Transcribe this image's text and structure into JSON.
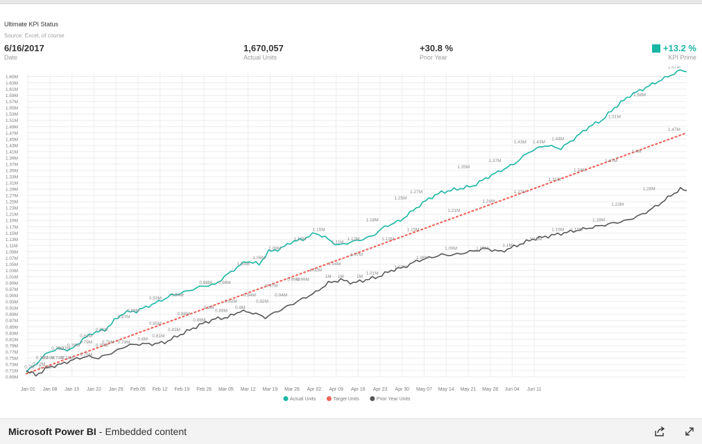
{
  "report": {
    "title": "Ultimate KPI Status",
    "source": "Source: Excel, of course"
  },
  "kpis": {
    "date": {
      "value": "6/16/2017",
      "label": "Date"
    },
    "actual_units": {
      "value": "1,670,057",
      "label": "Actual Units"
    },
    "prior_year": {
      "value": "+30.8 %",
      "label": "Prior Year"
    },
    "kpi_prime": {
      "value": "+13.2 %",
      "label": "KPI Prime",
      "status_color": "#1ab5a5"
    }
  },
  "footer": {
    "brand": "Microsoft Power BI",
    "separator": "-",
    "subtitle": "Embedded content",
    "share_icon": "share-icon",
    "expand_icon": "expand-icon"
  },
  "chart_data": {
    "type": "line",
    "title": "",
    "xlabel": "",
    "ylabel": "",
    "grid": true,
    "legend_position": "bottom",
    "x_ticks": [
      "Jan 01",
      "Jan 08",
      "Jan 15",
      "Jan 22",
      "Jan 29",
      "Feb 05",
      "Feb 12",
      "Feb 19",
      "Feb 26",
      "Mar 05",
      "Mar 12",
      "Mar 19",
      "Mar 26",
      "Apr 02",
      "Apr 09",
      "Apr 16",
      "Apr 23",
      "Apr 30",
      "May 07",
      "May 14",
      "May 21",
      "May 28",
      "Jun 04",
      "Jun 11"
    ],
    "y_ticks": [
      "0.69M",
      "0.71M",
      "0.73M",
      "0.75M",
      "0.77M",
      "0.79M",
      "0.81M",
      "0.83M",
      "0.85M",
      "0.87M",
      "0.89M",
      "0.91M",
      "0.93M",
      "0.95M",
      "0.97M",
      "0.99M",
      "1.01M",
      "1.03M",
      "1.05M",
      "1.07M",
      "1.09M",
      "1.11M",
      "1.13M",
      "1.15M",
      "1.17M",
      "1.19M",
      "1.21M",
      "1.23M",
      "1.25M",
      "1.27M",
      "1.29M",
      "1.31M",
      "1.33M",
      "1.35M",
      "1.37M",
      "1.39M",
      "1.41M",
      "1.43M",
      "1.45M",
      "1.47M",
      "1.49M",
      "1.51M",
      "1.53M",
      "1.55M",
      "1.57M",
      "1.59M",
      "1.61M",
      "1.63M",
      "1.65M"
    ],
    "ylim": [
      0.69,
      1.66
    ],
    "series": [
      {
        "name": "Actual Units",
        "color": "#1ab5a5",
        "style": "solid",
        "points": [
          [
            0,
            0.705
          ],
          [
            4,
            0.74
          ],
          [
            7,
            0.77
          ],
          [
            11,
            0.78
          ],
          [
            14,
            0.775
          ],
          [
            18,
            0.81
          ],
          [
            21,
            0.83
          ],
          [
            25,
            0.84
          ],
          [
            28,
            0.87
          ],
          [
            31,
            0.895
          ],
          [
            35,
            0.9
          ],
          [
            42,
            0.93
          ],
          [
            46,
            0.95
          ],
          [
            50,
            0.96
          ],
          [
            56,
            0.98
          ],
          [
            60,
            0.985
          ],
          [
            63,
            1.01
          ],
          [
            67,
            1.04
          ],
          [
            70,
            1.06
          ],
          [
            74,
            1.05
          ],
          [
            77,
            1.09
          ],
          [
            81,
            1.1
          ],
          [
            84,
            1.12
          ],
          [
            88,
            1.13
          ],
          [
            92,
            1.15
          ],
          [
            96,
            1.13
          ],
          [
            99,
            1.11
          ],
          [
            103,
            1.12
          ],
          [
            107,
            1.13
          ],
          [
            110,
            1.14
          ],
          [
            114,
            1.17
          ],
          [
            119,
            1.19
          ],
          [
            124,
            1.23
          ],
          [
            128,
            1.26
          ],
          [
            132,
            1.28
          ],
          [
            137,
            1.29
          ],
          [
            142,
            1.3
          ],
          [
            147,
            1.33
          ],
          [
            151,
            1.35
          ],
          [
            155,
            1.37
          ],
          [
            160,
            1.41
          ],
          [
            165,
            1.43
          ],
          [
            170,
            1.42
          ],
          [
            174,
            1.45
          ],
          [
            179,
            1.49
          ],
          [
            183,
            1.51
          ],
          [
            187,
            1.55
          ],
          [
            192,
            1.59
          ],
          [
            196,
            1.61
          ],
          [
            200,
            1.63
          ],
          [
            204,
            1.65
          ],
          [
            208,
            1.67
          ],
          [
            210,
            1.665
          ]
        ],
        "labels": [
          [
            1,
            0.71,
            "0.7M"
          ],
          [
            5,
            0.74,
            "0.74M"
          ],
          [
            10,
            0.77,
            "0.77M"
          ],
          [
            15,
            0.78,
            "0.78M"
          ],
          [
            19,
            0.81,
            "0.81M"
          ],
          [
            24,
            0.83,
            "0.83M"
          ],
          [
            31,
            0.87,
            "0.87M"
          ],
          [
            34,
            0.89,
            "0.89M"
          ],
          [
            41,
            0.93,
            "0.93M"
          ],
          [
            48,
            0.94,
            "0.94M"
          ],
          [
            57,
            0.98,
            "0.98M"
          ],
          [
            63,
            0.98,
            "0.98M"
          ],
          [
            69,
            1.04,
            "1.04M"
          ],
          [
            74,
            1.06,
            "1.06M"
          ],
          [
            79,
            1.09,
            "1.09M"
          ],
          [
            87,
            1.12,
            "1.12M"
          ],
          [
            93,
            1.15,
            "1.15M"
          ],
          [
            99,
            1.11,
            "1.11M"
          ],
          [
            104,
            1.12,
            "1.12M"
          ],
          [
            110,
            1.18,
            "1.18M"
          ],
          [
            119,
            1.25,
            "1.25M"
          ],
          [
            124,
            1.27,
            "1.27M"
          ],
          [
            139,
            1.35,
            "1.35M"
          ],
          [
            149,
            1.37,
            "1.37M"
          ],
          [
            157,
            1.43,
            "1.43M"
          ],
          [
            163,
            1.43,
            "1.43M"
          ],
          [
            169,
            1.44,
            "1.44M"
          ],
          [
            187,
            1.51,
            "1.51M"
          ],
          [
            195,
            1.58,
            "1.58M"
          ],
          [
            206,
            1.67,
            "1.67M"
          ]
        ]
      },
      {
        "name": "Target Units",
        "color": "#f0645a",
        "style": "dotted",
        "points": [
          [
            0,
            0.7
          ],
          [
            210,
            1.47
          ]
        ],
        "labels": [
          [
            4,
            0.72,
            "0.72M"
          ],
          [
            7,
            0.74,
            "0.74M"
          ],
          [
            12,
            0.77,
            "0.77M"
          ],
          [
            19,
            0.79,
            "0.79M"
          ],
          [
            26,
            0.79,
            "0.79M"
          ],
          [
            41,
            0.85,
            "0.85M"
          ],
          [
            50,
            0.88,
            "0.88M"
          ],
          [
            58,
            0.9,
            "0.9M"
          ],
          [
            65,
            0.92,
            "0.92M"
          ],
          [
            71,
            0.94,
            "0.94M"
          ],
          [
            78,
            0.97,
            "0.97M"
          ],
          [
            85,
            0.99,
            "0.99M"
          ],
          [
            92,
            1.02,
            "1.02M"
          ],
          [
            98,
            1.04,
            "1.04M"
          ],
          [
            105,
            1.07,
            "1.07M"
          ],
          [
            115,
            1.12,
            "1.12M"
          ],
          [
            123,
            1.15,
            "1.15M"
          ],
          [
            136,
            1.21,
            "1.21M"
          ],
          [
            147,
            1.24,
            "1.24M"
          ],
          [
            157,
            1.27,
            "1.27M"
          ],
          [
            168,
            1.31,
            "1.31M"
          ],
          [
            176,
            1.34,
            "1.34M"
          ],
          [
            186,
            1.37,
            "1.37M"
          ],
          [
            194,
            1.4,
            "1.4M"
          ],
          [
            206,
            1.47,
            "1.47M"
          ]
        ]
      },
      {
        "name": "Prior Year Units",
        "color": "#555555",
        "style": "solid",
        "points": [
          [
            0,
            0.71
          ],
          [
            3,
            0.695
          ],
          [
            7,
            0.72
          ],
          [
            11,
            0.73
          ],
          [
            15,
            0.745
          ],
          [
            19,
            0.755
          ],
          [
            23,
            0.75
          ],
          [
            28,
            0.77
          ],
          [
            32,
            0.79
          ],
          [
            36,
            0.795
          ],
          [
            40,
            0.795
          ],
          [
            44,
            0.8
          ],
          [
            48,
            0.82
          ],
          [
            52,
            0.84
          ],
          [
            56,
            0.86
          ],
          [
            60,
            0.875
          ],
          [
            64,
            0.88
          ],
          [
            68,
            0.9
          ],
          [
            72,
            0.895
          ],
          [
            76,
            0.88
          ],
          [
            80,
            0.9
          ],
          [
            84,
            0.92
          ],
          [
            88,
            0.94
          ],
          [
            92,
            0.96
          ],
          [
            96,
            0.99
          ],
          [
            100,
            1.0
          ],
          [
            104,
            0.99
          ],
          [
            108,
            1.0
          ],
          [
            112,
            1.01
          ],
          [
            116,
            1.03
          ],
          [
            120,
            1.04
          ],
          [
            124,
            1.06
          ],
          [
            128,
            1.07
          ],
          [
            132,
            1.08
          ],
          [
            136,
            1.08
          ],
          [
            141,
            1.09
          ],
          [
            146,
            1.1
          ],
          [
            151,
            1.09
          ],
          [
            156,
            1.11
          ],
          [
            161,
            1.13
          ],
          [
            166,
            1.14
          ],
          [
            171,
            1.15
          ],
          [
            176,
            1.16
          ],
          [
            181,
            1.17
          ],
          [
            186,
            1.18
          ],
          [
            191,
            1.19
          ],
          [
            196,
            1.21
          ],
          [
            201,
            1.24
          ],
          [
            205,
            1.27
          ],
          [
            208,
            1.29
          ],
          [
            210,
            1.285
          ]
        ],
        "labels": [
          [
            6,
            0.71,
            "0.71M"
          ],
          [
            10,
            0.74,
            "0.74M"
          ],
          [
            13,
            0.74,
            "0.74M"
          ],
          [
            19,
            0.75,
            "0.75M"
          ],
          [
            24,
            0.78,
            "0.78M"
          ],
          [
            31,
            0.79,
            "0.79M"
          ],
          [
            37,
            0.8,
            "0.8M"
          ],
          [
            42,
            0.81,
            "0.81M"
          ],
          [
            47,
            0.83,
            "0.83M"
          ],
          [
            55,
            0.86,
            "0.86M"
          ],
          [
            62,
            0.89,
            "0.89M"
          ],
          [
            68,
            0.9,
            "0.9M"
          ],
          [
            75,
            0.92,
            "0.92M"
          ],
          [
            81,
            0.94,
            "0.94M"
          ],
          [
            88,
            0.99,
            "0.99M"
          ],
          [
            96,
            1.0,
            "1M"
          ],
          [
            100,
            1.0,
            "1M"
          ],
          [
            106,
            1.0,
            "1M"
          ],
          [
            110,
            1.01,
            "1.01M"
          ],
          [
            119,
            1.03,
            "1.03M"
          ],
          [
            126,
            1.06,
            "1.06M"
          ],
          [
            135,
            1.09,
            "1.09M"
          ],
          [
            145,
            1.09,
            "1.09M"
          ],
          [
            153,
            1.1,
            "1.1M"
          ],
          [
            162,
            1.12,
            "1.12M"
          ],
          [
            169,
            1.15,
            "1.15M"
          ],
          [
            175,
            1.15,
            "1.15M"
          ],
          [
            182,
            1.18,
            "1.18M"
          ],
          [
            188,
            1.23,
            "1.23M"
          ],
          [
            198,
            1.28,
            "1.28M"
          ]
        ]
      }
    ]
  }
}
